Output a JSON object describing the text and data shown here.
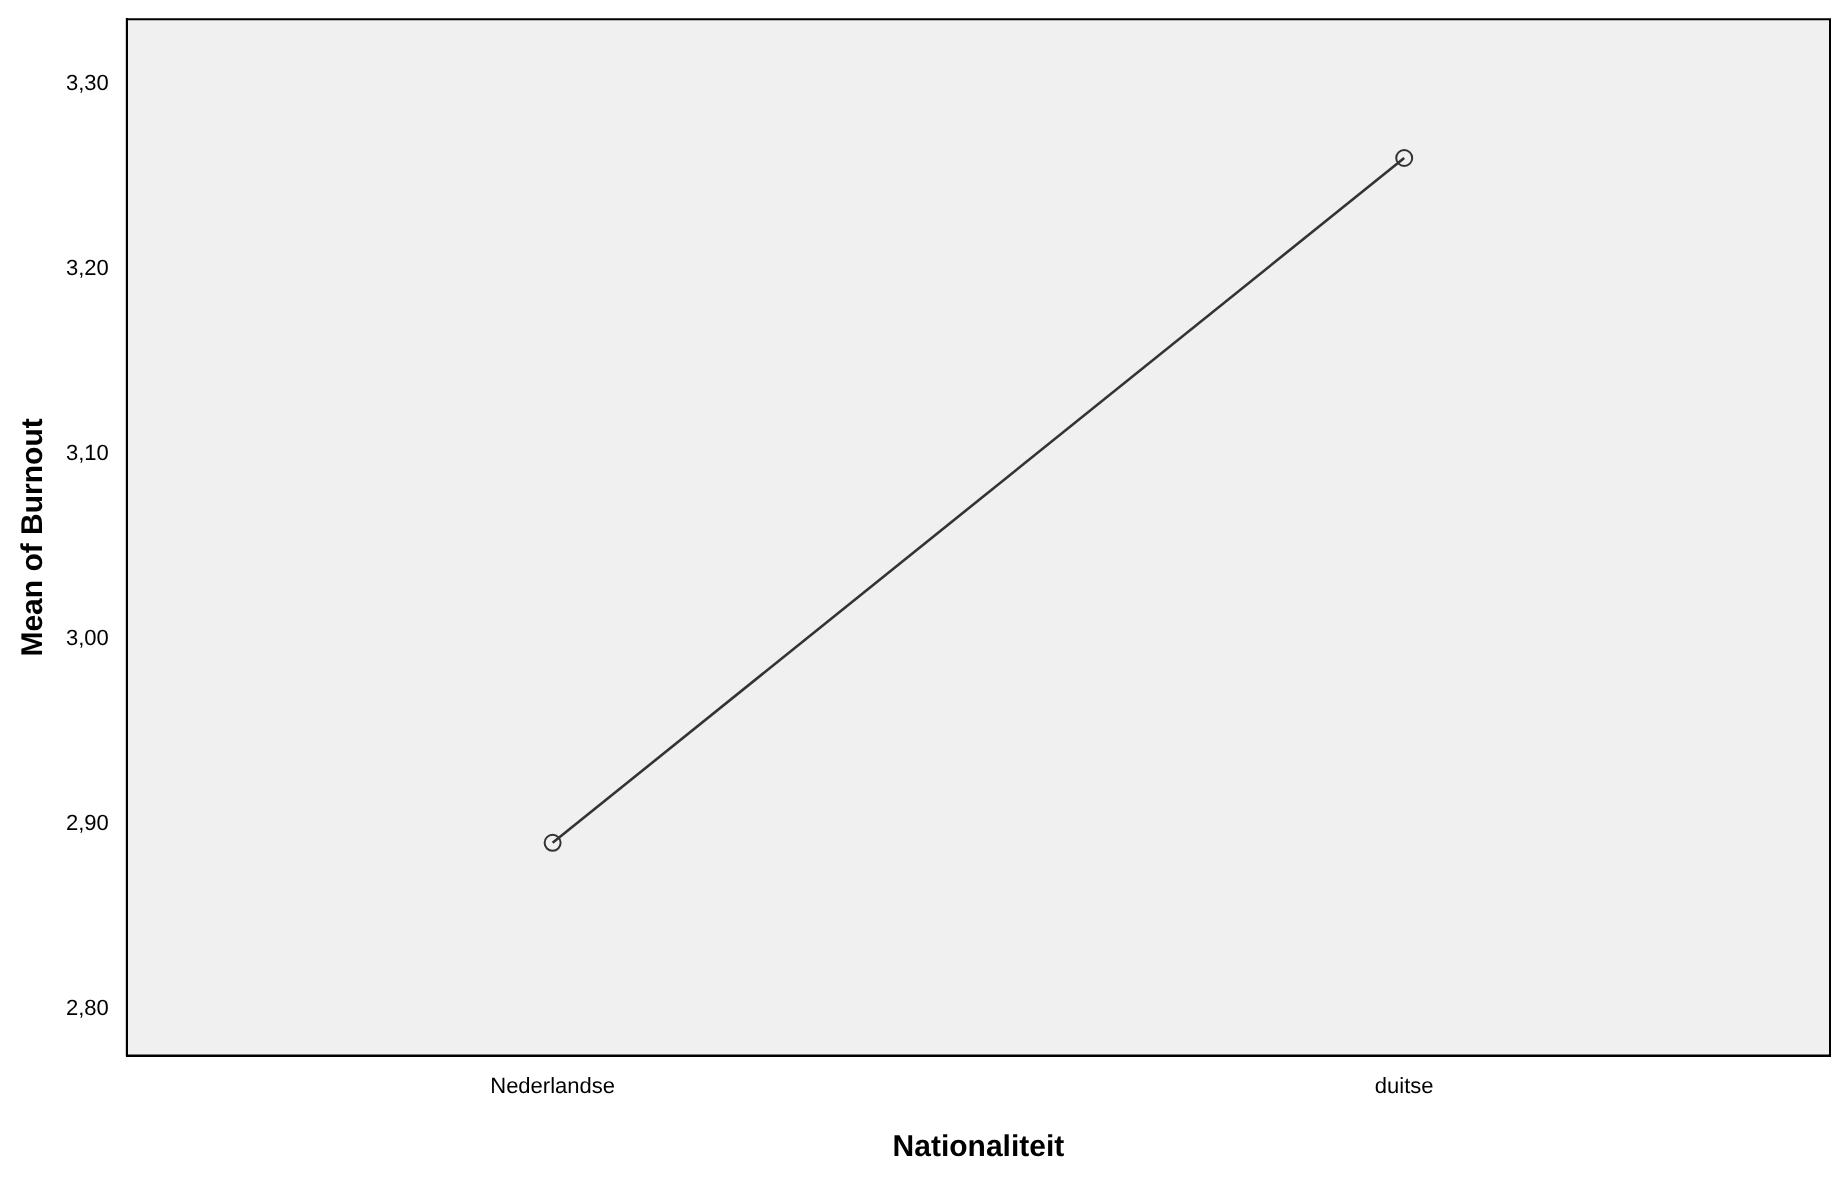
{
  "chart_data": {
    "type": "line",
    "xlabel": "Nationaliteit",
    "ylabel": "Mean of Burnout",
    "categories": [
      "Nederlandse",
      "duitse"
    ],
    "series": [
      {
        "color": "#333333",
        "values": [
          2.89,
          3.26
        ]
      }
    ],
    "ylim": [
      2.775,
      3.335
    ],
    "yticks": [
      {
        "value": 2.8,
        "label": "2,80"
      },
      {
        "value": 2.9,
        "label": "2,90"
      },
      {
        "value": 3.0,
        "label": "3,00"
      },
      {
        "value": 3.1,
        "label": "3,10"
      },
      {
        "value": 3.2,
        "label": "3,20"
      },
      {
        "value": 3.3,
        "label": "3,30"
      }
    ],
    "grid": false,
    "legend": false,
    "marker": "circle",
    "line_style": "solid"
  }
}
